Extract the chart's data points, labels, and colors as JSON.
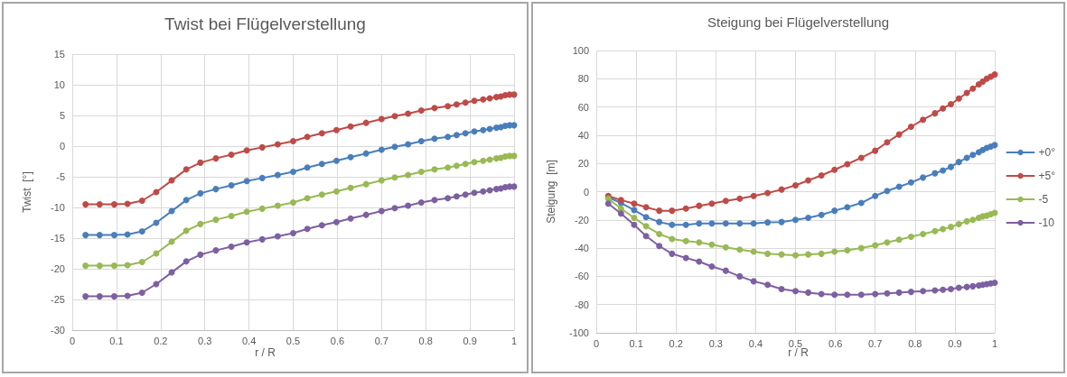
{
  "chart_data": [
    {
      "type": "line",
      "title": "Twist bei Flügelverstellung",
      "xlabel": "r / R",
      "ylabel": "Twist  [°]",
      "x": [
        0.03,
        0.062,
        0.095,
        0.125,
        0.158,
        0.19,
        0.225,
        0.258,
        0.29,
        0.325,
        0.36,
        0.395,
        0.43,
        0.465,
        0.5,
        0.532,
        0.565,
        0.598,
        0.63,
        0.665,
        0.7,
        0.73,
        0.76,
        0.79,
        0.82,
        0.85,
        0.87,
        0.89,
        0.91,
        0.93,
        0.945,
        0.96,
        0.97,
        0.98,
        0.99,
        1.0
      ],
      "series": [
        {
          "color": "#4a7ebb",
          "values": [
            -14.5,
            -14.5,
            -14.5,
            -14.4,
            -13.9,
            -12.5,
            -10.6,
            -8.8,
            -7.7,
            -7,
            -6.4,
            -5.7,
            -5.2,
            -4.7,
            -4.2,
            -3.5,
            -2.9,
            -2.4,
            -1.8,
            -1.2,
            -0.6,
            -0.1,
            0.3,
            0.8,
            1.2,
            1.5,
            1.8,
            2.1,
            2.4,
            2.6,
            2.8,
            3,
            3.1,
            3.3,
            3.4,
            3.4
          ]
        },
        {
          "color": "#be4b48",
          "values": [
            -9.5,
            -9.5,
            -9.5,
            -9.4,
            -8.9,
            -7.5,
            -5.6,
            -3.8,
            -2.7,
            -2,
            -1.4,
            -0.7,
            -0.2,
            0.3,
            0.8,
            1.5,
            2.1,
            2.6,
            3.2,
            3.8,
            4.4,
            4.9,
            5.3,
            5.8,
            6.2,
            6.5,
            6.8,
            7.1,
            7.4,
            7.6,
            7.8,
            8,
            8.1,
            8.3,
            8.4,
            8.4
          ]
        },
        {
          "color": "#98b954",
          "values": [
            -19.5,
            -19.5,
            -19.5,
            -19.4,
            -18.9,
            -17.5,
            -15.6,
            -13.8,
            -12.7,
            -12,
            -11.4,
            -10.7,
            -10.2,
            -9.7,
            -9.2,
            -8.5,
            -7.9,
            -7.4,
            -6.8,
            -6.2,
            -5.6,
            -5.1,
            -4.7,
            -4.2,
            -3.8,
            -3.5,
            -3.2,
            -2.9,
            -2.6,
            -2.4,
            -2.2,
            -2,
            -1.9,
            -1.7,
            -1.6,
            -1.6
          ]
        },
        {
          "color": "#7d60a0",
          "values": [
            -24.5,
            -24.5,
            -24.5,
            -24.4,
            -23.9,
            -22.5,
            -20.6,
            -18.8,
            -17.7,
            -17,
            -16.4,
            -15.7,
            -15.2,
            -14.7,
            -14.2,
            -13.5,
            -12.9,
            -12.4,
            -11.8,
            -11.2,
            -10.6,
            -10.1,
            -9.7,
            -9.2,
            -8.8,
            -8.5,
            -8.2,
            -7.9,
            -7.6,
            -7.4,
            -7.2,
            -7,
            -6.9,
            -6.7,
            -6.6,
            -6.6
          ]
        }
      ],
      "xlim": [
        0,
        1
      ],
      "xticks": [
        0,
        0.1,
        0.2,
        0.3,
        0.4,
        0.5,
        0.6,
        0.7,
        0.8,
        0.9,
        1
      ],
      "ylim": [
        -30,
        15
      ],
      "yticks": [
        -30,
        -25,
        -20,
        -15,
        -10,
        -5,
        0,
        5,
        10,
        15
      ],
      "grid": true,
      "marker": "circle",
      "line_style": "solid"
    },
    {
      "type": "line",
      "title": "Steigung bei Flügelverstellung",
      "xlabel": "r / R",
      "ylabel": "Steigung  [m]",
      "x": [
        0.03,
        0.062,
        0.095,
        0.125,
        0.158,
        0.19,
        0.225,
        0.258,
        0.29,
        0.325,
        0.36,
        0.395,
        0.43,
        0.465,
        0.5,
        0.532,
        0.565,
        0.598,
        0.63,
        0.665,
        0.7,
        0.73,
        0.76,
        0.79,
        0.82,
        0.85,
        0.87,
        0.89,
        0.91,
        0.93,
        0.945,
        0.96,
        0.97,
        0.98,
        0.99,
        1.0
      ],
      "series": [
        {
          "name": "+0°",
          "color": "#4a7ebb",
          "values": [
            -4,
            -8,
            -13,
            -18,
            -21.5,
            -23.5,
            -23.5,
            -22.5,
            -22.5,
            -22.5,
            -22.5,
            -22.5,
            -21.8,
            -21.5,
            -20,
            -18.5,
            -16.5,
            -13.5,
            -11,
            -8,
            -3,
            0.5,
            3.5,
            6.5,
            10,
            13,
            15,
            17.5,
            21,
            24,
            26,
            28,
            29.5,
            31,
            32,
            33
          ]
        },
        {
          "name": "+5°",
          "color": "#be4b48",
          "values": [
            -3,
            -6,
            -8.5,
            -11,
            -13.5,
            -13.5,
            -12,
            -10,
            -8.5,
            -6.5,
            -5,
            -3,
            -1,
            1.5,
            4.5,
            8,
            11.5,
            15.5,
            19.5,
            24,
            29,
            35,
            40.5,
            46,
            51,
            55.5,
            59,
            62,
            66,
            70,
            73,
            76,
            78,
            80,
            81.5,
            83
          ]
        },
        {
          "name": "-5",
          "color": "#98b954",
          "values": [
            -5,
            -12,
            -18.5,
            -24.5,
            -30,
            -33.5,
            -35,
            -36,
            -37.5,
            -39.5,
            -41,
            -42.5,
            -44,
            -44.5,
            -45,
            -44.5,
            -44,
            -42.5,
            -41.5,
            -40,
            -38,
            -36,
            -34,
            -32,
            -30,
            -28,
            -26.5,
            -25,
            -23,
            -21,
            -20,
            -18.5,
            -17.5,
            -17,
            -16,
            -15
          ]
        },
        {
          "name": "-10",
          "color": "#7d60a0",
          "values": [
            -8.5,
            -15.5,
            -23.5,
            -31.5,
            -38.5,
            -44,
            -47,
            -49.5,
            -53,
            -56,
            -60,
            -63.5,
            -66,
            -69,
            -70.5,
            -71.5,
            -72.5,
            -73,
            -73,
            -73,
            -72.5,
            -72,
            -71.5,
            -71,
            -70.5,
            -70,
            -69.5,
            -69,
            -68,
            -67.5,
            -67,
            -66.5,
            -66,
            -65.5,
            -65,
            -64.5
          ]
        }
      ],
      "xlim": [
        0,
        1
      ],
      "xticks": [
        0,
        0.1,
        0.2,
        0.3,
        0.4,
        0.5,
        0.6,
        0.7,
        0.8,
        0.9,
        1
      ],
      "ylim": [
        -100,
        100
      ],
      "yticks": [
        -100,
        -80,
        -60,
        -40,
        -20,
        0,
        20,
        40,
        60,
        80,
        100
      ],
      "grid": true,
      "legend": "right",
      "marker": "circle",
      "line_style": "solid"
    }
  ]
}
